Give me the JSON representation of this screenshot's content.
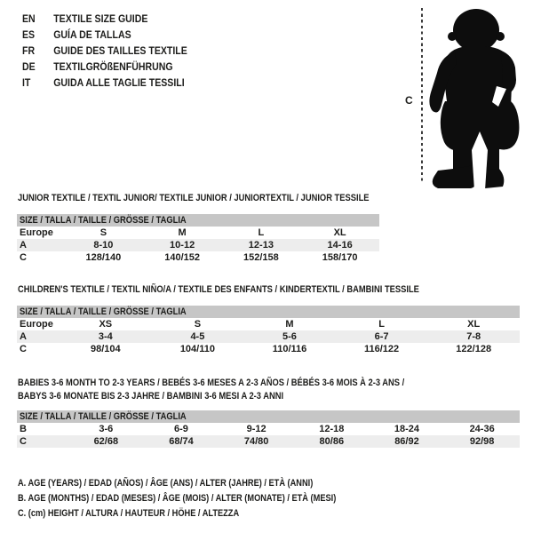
{
  "languages": [
    {
      "code": "EN",
      "label": "TEXTILE SIZE GUIDE"
    },
    {
      "code": "ES",
      "label": "GUÍA DE TALLAS"
    },
    {
      "code": "FR",
      "label": "GUIDE DES TAILLES TEXTILE"
    },
    {
      "code": "DE",
      "label": "TEXTILGRÖßENFÜHRUNG"
    },
    {
      "code": "IT",
      "label": "GUIDA ALLE TAGLIE TESSILI"
    }
  ],
  "figure": {
    "height_label": "C"
  },
  "tables": [
    {
      "id": "junior",
      "title_lines": [
        "JUNIOR TEXTILE / TEXTIL JUNIOR/ TEXTILE JUNIOR / JUNIORTEXTIL / JUNIOR TESSILE"
      ],
      "size_header": "SIZE / TALLA / TAILLE / GRÖSSE / TAGLIA",
      "rows": [
        [
          "Europe",
          "S",
          "M",
          "L",
          "XL"
        ],
        [
          "A",
          "8-10",
          "10-12",
          "12-13",
          "14-16"
        ],
        [
          "C",
          "128/140",
          "140/152",
          "152/158",
          "158/170"
        ]
      ]
    },
    {
      "id": "children",
      "title_lines": [
        "CHILDREN'S TEXTILE / TEXTIL NIÑO/A / TEXTILE DES ENFANTS / KINDERTEXTIL / BAMBINI TESSILE"
      ],
      "size_header": "SIZE / TALLA / TAILLE / GRÖSSE / TAGLIA",
      "rows": [
        [
          "Europe",
          "XS",
          "S",
          "M",
          "L",
          "XL"
        ],
        [
          "A",
          "3-4",
          "4-5",
          "5-6",
          "6-7",
          "7-8"
        ],
        [
          "C",
          "98/104",
          "104/110",
          "110/116",
          "116/122",
          "122/128"
        ]
      ]
    },
    {
      "id": "babies",
      "title_lines": [
        "BABIES 3-6 MONTH TO 2-3 YEARS / BEBÉS 3-6 MESES A 2-3 AÑOS / BÉBÉS 3-6 MOIS À 2-3 ANS /",
        "BABYS 3-6 MONATE BIS 2-3 JAHRE / BAMBINI 3-6 MESI A 2-3 ANNI"
      ],
      "size_header": "SIZE / TALLA / TAILLE / GRÖSSE / TAGLIA",
      "rows": [
        [
          "B",
          "3-6",
          "6-9",
          "9-12",
          "12-18",
          "18-24",
          "24-36"
        ],
        [
          "C",
          "62/68",
          "68/74",
          "74/80",
          "80/86",
          "86/92",
          "92/98"
        ]
      ]
    }
  ],
  "footnotes": [
    "A. AGE (YEARS) / EDAD (AÑOS) / ÂGE (ANS) / ALTER (JAHRE) / ETÀ (ANNI)",
    "B. AGE (MONTHS) / EDAD (MESES) / ÂGE (MOIS) / ALTER (MONATE) / ETÀ (MESI)",
    "C. (cm) HEIGHT / ALTURA / HAUTEUR / HÖHE / ALTEZZA"
  ],
  "colors": {
    "header_band": "#c6c6c6",
    "row_stripe": "#ededed",
    "text": "#1d1d1b",
    "silhouette": "#0d0d0d"
  }
}
